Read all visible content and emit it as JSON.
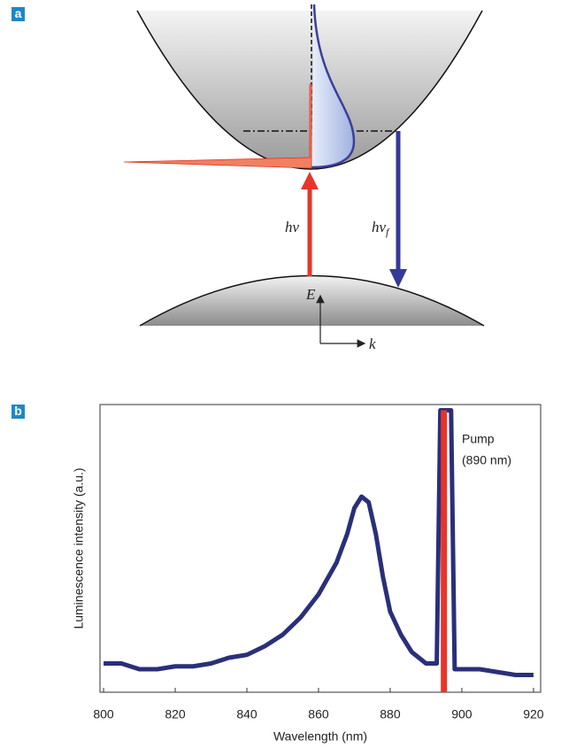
{
  "panels": {
    "a": "a",
    "b": "b"
  },
  "diagram": {
    "absorption": "hν",
    "emission": {
      "text": "hν",
      "subscript": "f"
    },
    "energy_axis": "E",
    "momentum_axis": "k"
  },
  "chart_data": {
    "type": "line",
    "xlabel": "Wavelength (nm)",
    "ylabel": "Luminescence intensity (a.u.)",
    "annotation": [
      "Pump",
      "(890 nm)"
    ],
    "xlim": [
      799,
      922
    ],
    "xticks": [
      800,
      820,
      840,
      860,
      880,
      900,
      920
    ],
    "ylim": [
      0,
      1
    ],
    "series": [
      {
        "color": "#2a2f7a",
        "x": [
          800,
          805,
          810,
          815,
          820,
          825,
          830,
          835,
          840,
          845,
          850,
          855,
          860,
          865,
          868,
          870,
          872,
          874,
          876,
          878,
          880,
          883,
          886,
          890,
          893,
          894,
          897,
          898,
          900,
          905,
          910,
          915,
          920
        ],
        "values": [
          0.1,
          0.1,
          0.08,
          0.08,
          0.09,
          0.09,
          0.1,
          0.12,
          0.13,
          0.16,
          0.2,
          0.26,
          0.34,
          0.45,
          0.55,
          0.64,
          0.68,
          0.66,
          0.55,
          0.4,
          0.28,
          0.2,
          0.14,
          0.1,
          0.1,
          0.98,
          0.98,
          0.08,
          0.08,
          0.08,
          0.07,
          0.06,
          0.06
        ]
      },
      {
        "color": "#e8342a",
        "x": [
          895,
          895
        ],
        "values": [
          0,
          0.98
        ]
      }
    ]
  }
}
